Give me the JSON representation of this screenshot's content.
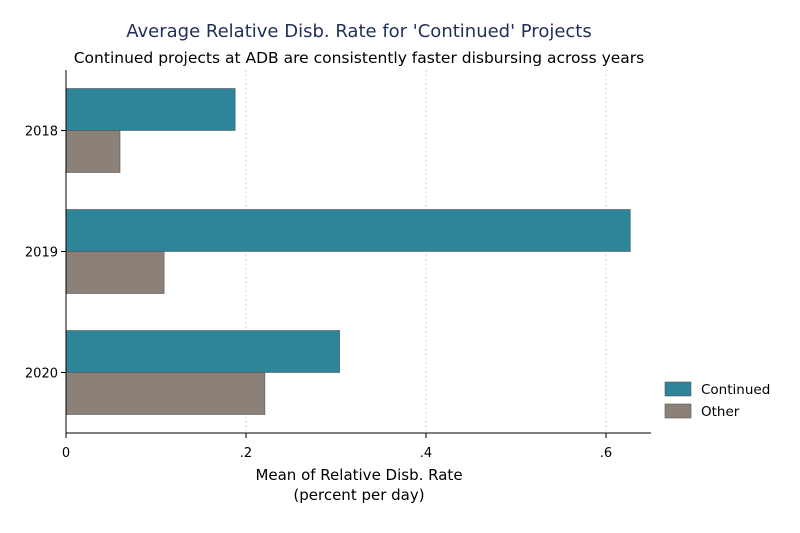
{
  "chart_data": {
    "type": "bar",
    "orientation": "horizontal",
    "title": "Average Relative Disb. Rate for 'Continued' Projects",
    "subtitle": "Continued projects at ADB are consistently faster disbursing across years",
    "categories": [
      "2018",
      "2019",
      "2020"
    ],
    "series": [
      {
        "name": "Continued",
        "color": "#2e8599",
        "values": [
          0.188,
          0.627,
          0.304
        ]
      },
      {
        "name": "Other",
        "color": "#8b8178",
        "values": [
          0.06,
          0.109,
          0.221
        ]
      }
    ],
    "xlabel_lines": [
      "Mean of Relative Disb. Rate",
      "(percent per day)"
    ],
    "xlim": [
      0,
      0.65
    ],
    "xticks": [
      {
        "value": 0,
        "label": "0"
      },
      {
        "value": 0.2,
        "label": ".2"
      },
      {
        "value": 0.4,
        "label": ".4"
      },
      {
        "value": 0.6,
        "label": ".6"
      }
    ],
    "grid": "vertical dotted",
    "legend_position": "right"
  }
}
